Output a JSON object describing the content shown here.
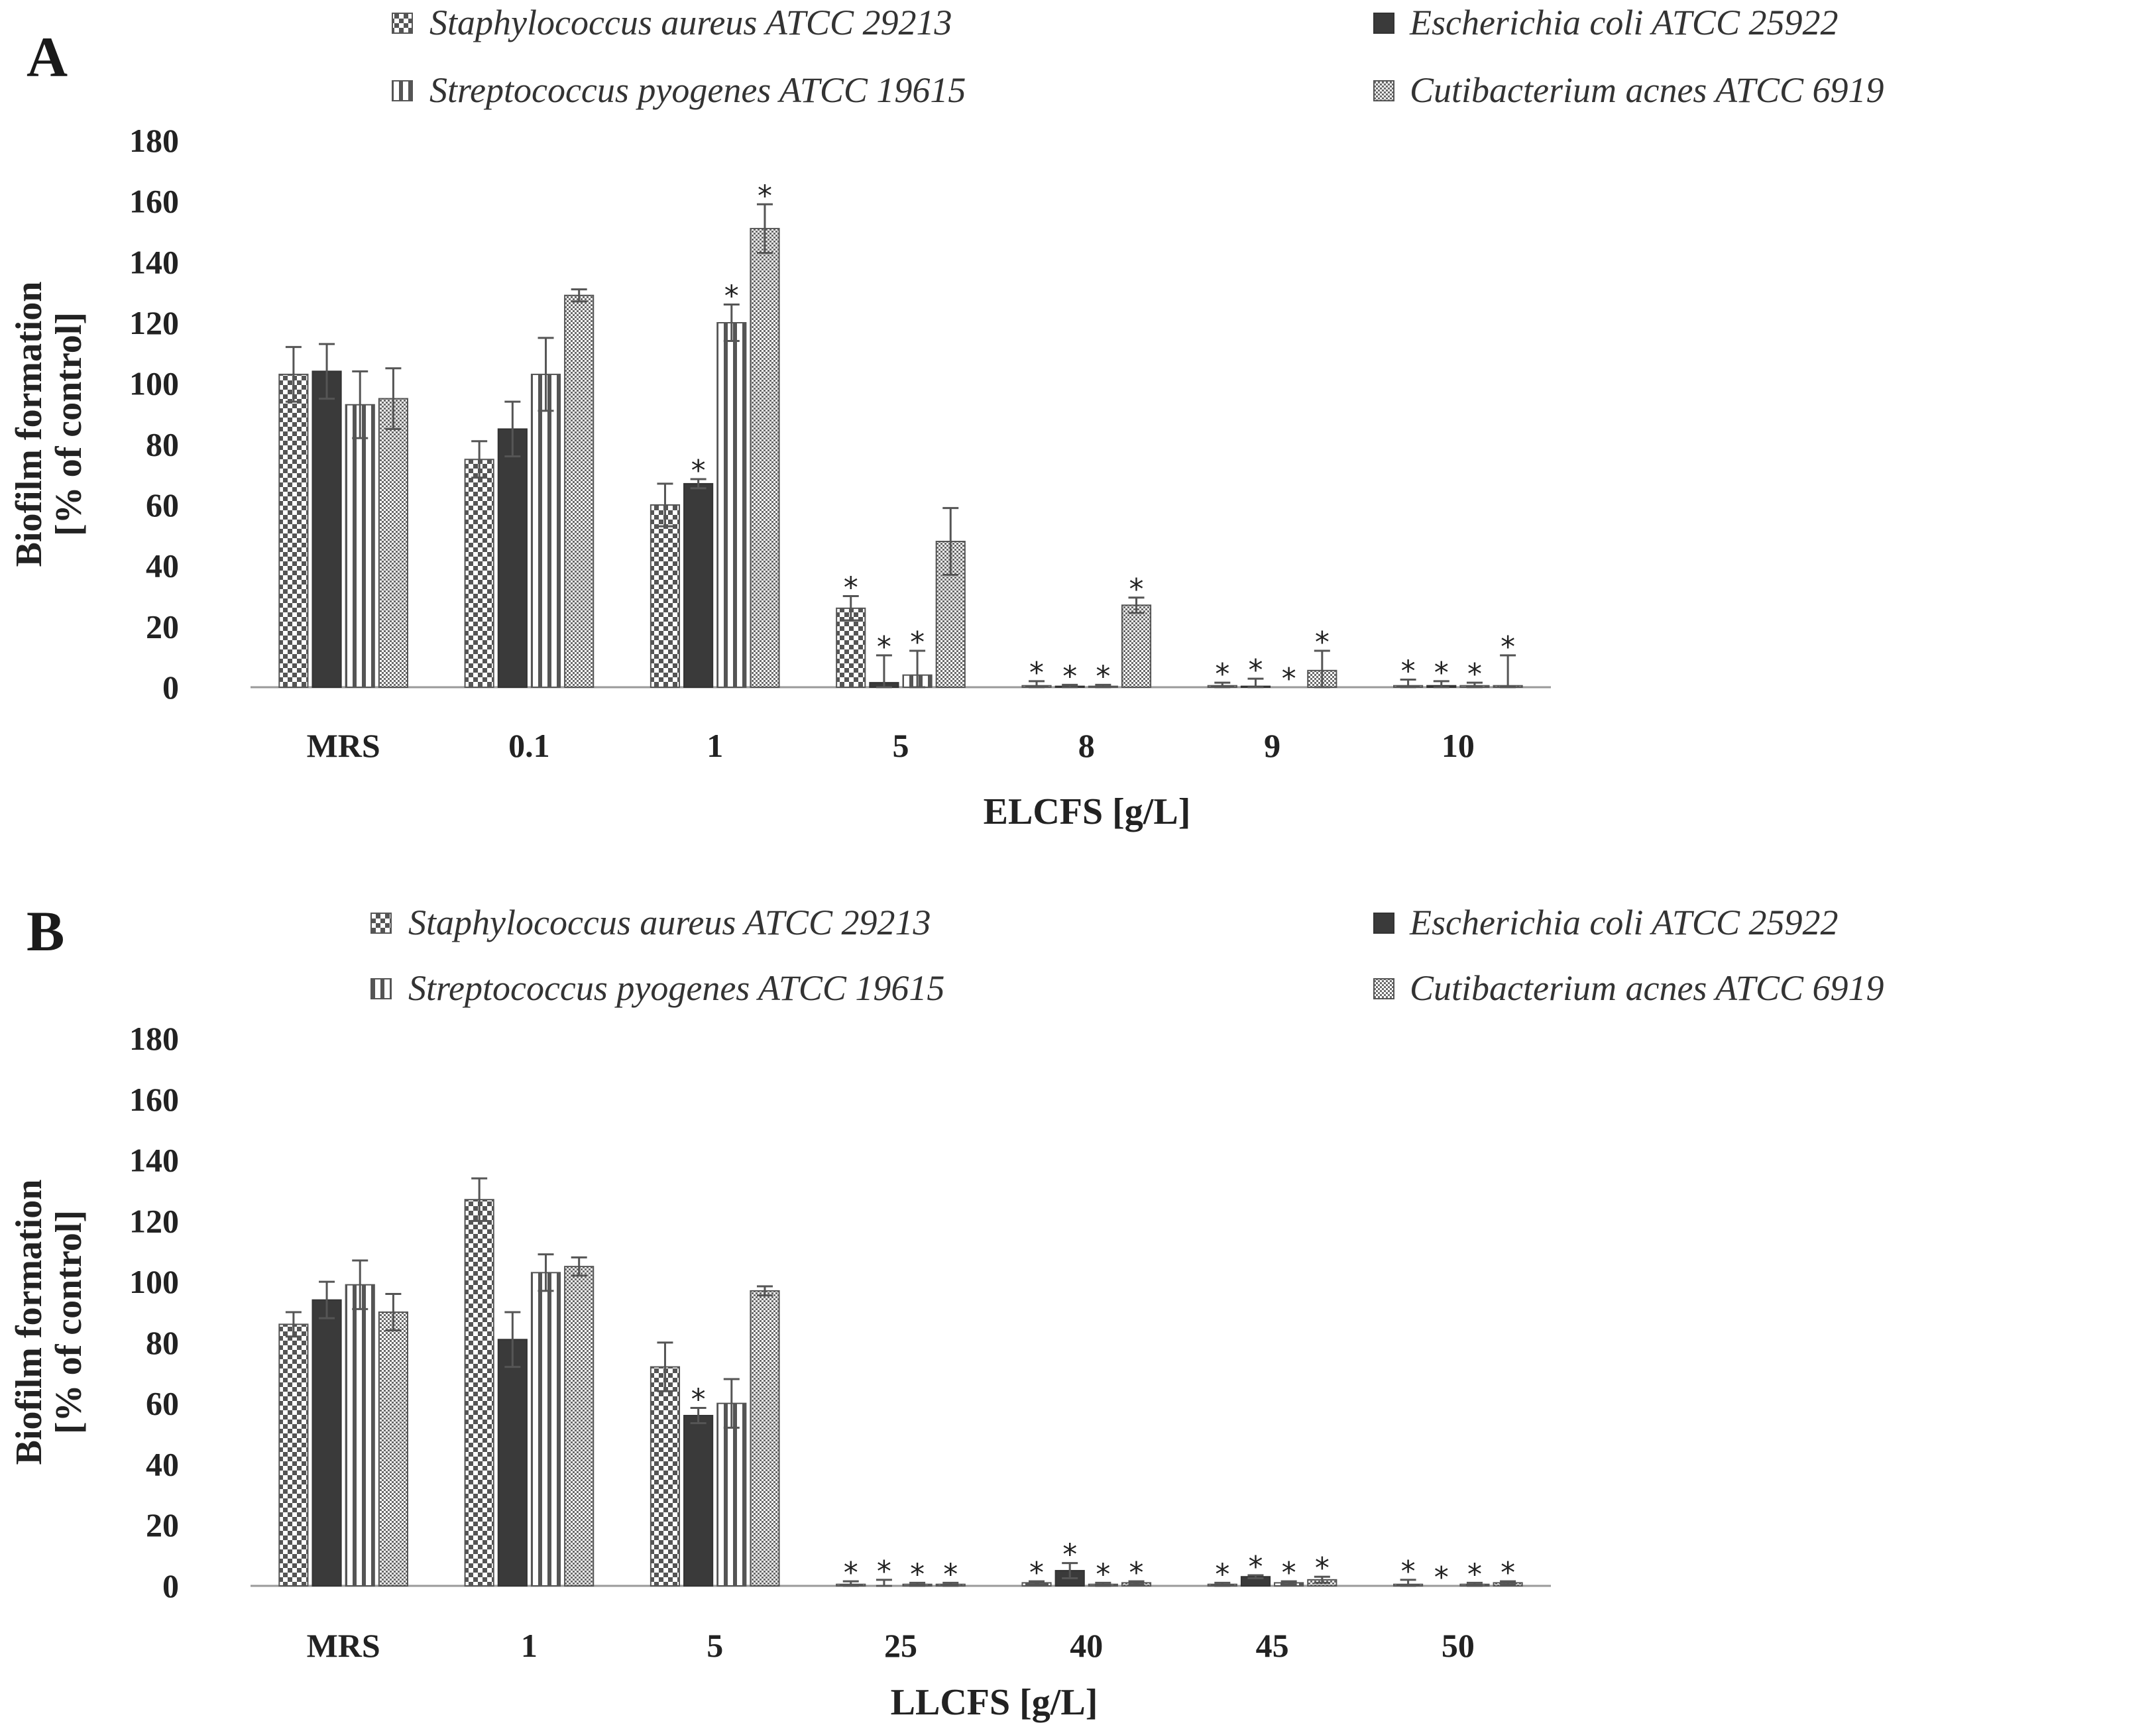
{
  "colors": {
    "staph": "#555555",
    "ecoli": "#3a3a3a",
    "strep": "#555555",
    "acnes": "#6a6a6a",
    "errorbar": "#555555",
    "axis": "#9a9a9a"
  },
  "legend_labels": [
    "Staphylococcus aureus ATCC 29213",
    "Escherichia coli ATCC 25922",
    "Streptococcus pyogenes ATCC 19615",
    "Cutibacterium acnes ATCC 6919"
  ],
  "chart_data": [
    {
      "panel": "A",
      "type": "bar",
      "xlabel": "ELCFS [g/L]",
      "ylabel_line1": "Biofilm formation",
      "ylabel_line2": "[% of  control]",
      "ylim": [
        0,
        180
      ],
      "yticks": [
        "0",
        "20",
        "40",
        "60",
        "80",
        "100",
        "120",
        "140",
        "160",
        "180"
      ],
      "categories": [
        "MRS",
        "0.1",
        "1",
        "5",
        "8",
        "9",
        "10"
      ],
      "series": [
        {
          "name": "Staphylococcus aureus ATCC 29213",
          "values": [
            103,
            75,
            60,
            26,
            0.5,
            0.5,
            0.5
          ],
          "errors": [
            9,
            6,
            7,
            4,
            1.5,
            1,
            2
          ],
          "significant": [
            false,
            false,
            false,
            true,
            true,
            true,
            true
          ]
        },
        {
          "name": "Escherichia coli ATCC 25922",
          "values": [
            104,
            85,
            67,
            1.5,
            0.3,
            0.3,
            0.5
          ],
          "errors": [
            9,
            9,
            1.5,
            9,
            0.5,
            2.5,
            1.5
          ],
          "significant": [
            false,
            false,
            true,
            true,
            true,
            true,
            true
          ]
        },
        {
          "name": "Streptococcus pyogenes ATCC 19615",
          "values": [
            93,
            103,
            120,
            4,
            0.3,
            0,
            0.5
          ],
          "errors": [
            11,
            12,
            6,
            8,
            0.5,
            0,
            1
          ],
          "significant": [
            false,
            false,
            true,
            true,
            true,
            true,
            true
          ]
        },
        {
          "name": "Cutibacterium acnes ATCC 6919",
          "values": [
            95,
            129,
            151,
            48,
            27,
            5.5,
            0.5
          ],
          "errors": [
            10,
            2,
            8,
            11,
            2.5,
            6.5,
            10
          ],
          "significant": [
            false,
            false,
            true,
            false,
            true,
            true,
            true
          ]
        }
      ]
    },
    {
      "panel": "B",
      "type": "bar",
      "xlabel": "LLCFS [g/L]",
      "ylabel_line1": "Biofilm formation",
      "ylabel_line2": "[% of  control]",
      "ylim": [
        0,
        180
      ],
      "yticks": [
        "0",
        "20",
        "40",
        "60",
        "80",
        "100",
        "120",
        "140",
        "160",
        "180"
      ],
      "categories": [
        "MRS",
        "1",
        "5",
        "25",
        "40",
        "45",
        "50"
      ],
      "series": [
        {
          "name": "Staphylococcus aureus ATCC 29213",
          "values": [
            86,
            127,
            72,
            0.5,
            1,
            0.5,
            0.5
          ],
          "errors": [
            4,
            7,
            8,
            1,
            0.5,
            0.5,
            1.5
          ],
          "significant": [
            false,
            false,
            false,
            true,
            true,
            true,
            true
          ]
        },
        {
          "name": "Escherichia coli ATCC 25922",
          "values": [
            94,
            81,
            56,
            -0.5,
            5,
            3,
            0
          ],
          "errors": [
            6,
            9,
            2.5,
            2.5,
            2.5,
            0.5,
            0
          ],
          "significant": [
            false,
            false,
            true,
            true,
            true,
            true,
            true
          ]
        },
        {
          "name": "Streptococcus pyogenes ATCC 19615",
          "values": [
            99,
            103,
            60,
            0.5,
            0.5,
            1,
            0.5
          ],
          "errors": [
            8,
            6,
            8,
            0.5,
            0.5,
            0.5,
            0.5
          ],
          "significant": [
            false,
            false,
            false,
            true,
            true,
            true,
            true
          ]
        },
        {
          "name": "Cutibacterium acnes ATCC 6919",
          "values": [
            90,
            105,
            97,
            0.5,
            1,
            2,
            1
          ],
          "errors": [
            6,
            3,
            1.5,
            0.5,
            0.5,
            1,
            0.5
          ],
          "significant": [
            false,
            false,
            false,
            true,
            true,
            true,
            true
          ]
        }
      ]
    }
  ]
}
